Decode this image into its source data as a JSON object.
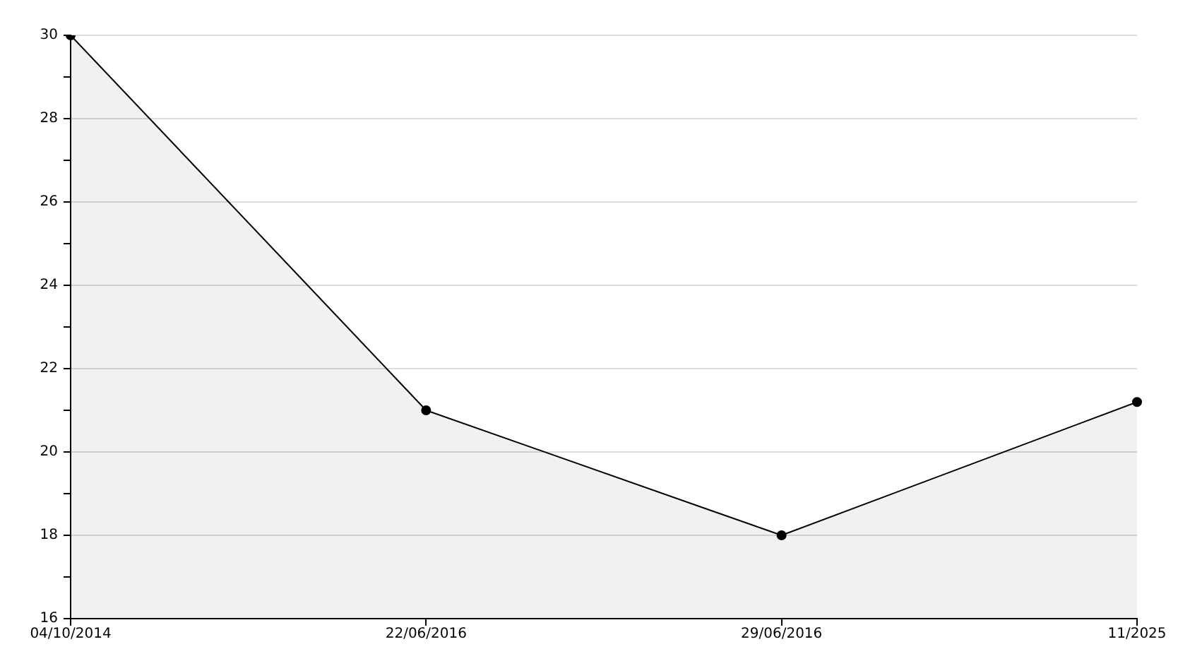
{
  "chart_data": {
    "type": "area",
    "categories": [
      "04/10/2014",
      "22/06/2016",
      "29/06/2016",
      "11/2025"
    ],
    "series": [
      {
        "color": "#000000",
        "values": [
          30,
          21,
          18,
          21.2
        ]
      }
    ],
    "ylim": [
      16,
      30
    ],
    "yticks": [
      16,
      {
        "value": 17,
        "label": null
      },
      18,
      {
        "value": 19,
        "label": null
      },
      20,
      {
        "value": 21,
        "label": null
      },
      22,
      {
        "value": 23,
        "label": null
      },
      24,
      {
        "value": 25,
        "label": null
      },
      26,
      {
        "value": 27,
        "label": null
      },
      28,
      {
        "value": 29,
        "label": null
      },
      30
    ],
    "grid": "y",
    "legend": false,
    "marker": "circle",
    "line_style": "solid"
  }
}
